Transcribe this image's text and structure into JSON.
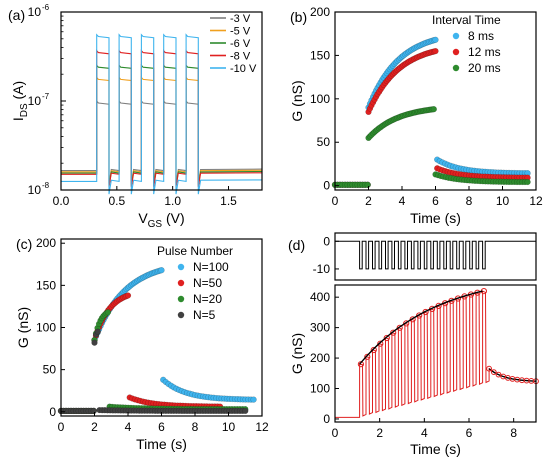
{
  "chart_data": [
    {
      "panel_label": "(a)",
      "type": "line",
      "xlabel_main": "V",
      "xlabel_sub": "GS",
      "xlabel_unit": " (V)",
      "ylabel_main": "I",
      "ylabel_sub": "DS",
      "ylabel_unit": " (A)",
      "xlim": [
        0,
        1.8
      ],
      "ylim": [
        1e-08,
        1e-06
      ],
      "y_scale": "log",
      "x_ticks": [
        0.0,
        0.5,
        1.0,
        1.5
      ],
      "x_tick_labels": [
        "0.0",
        "0.5",
        "1.0",
        "1.5"
      ],
      "y_ticks": [
        1e-08,
        1e-07,
        1e-06
      ],
      "y_tick_base": [
        "10",
        "10",
        "10"
      ],
      "y_tick_exp": [
        "-8",
        "-7",
        "-6"
      ],
      "legend_position": "top-right",
      "pulse_intervals": [
        [
          0.32,
          0.43
        ],
        [
          0.52,
          0.63
        ],
        [
          0.72,
          0.83
        ],
        [
          0.92,
          1.03
        ],
        [
          1.12,
          1.23
        ]
      ],
      "series": [
        {
          "name": "-3 V",
          "color": "#7f7f7f",
          "low": 1.65e-08,
          "high": 9.5e-08
        },
        {
          "name": "-5 V",
          "color": "#f0a01e",
          "low": 1.6e-08,
          "high": 1.75e-07
        },
        {
          "name": "-6 V",
          "color": "#2e8b2e",
          "low": 1.55e-08,
          "high": 2.4e-07
        },
        {
          "name": "-8 V",
          "color": "#e02020",
          "low": 1.5e-08,
          "high": 3.5e-07
        },
        {
          "name": "-10 V",
          "color": "#3fb4ee",
          "low": 1.25e-08,
          "high": 5.3e-07
        }
      ]
    },
    {
      "panel_label": "(b)",
      "type": "scatter",
      "xlabel": "Time (s)",
      "ylabel": "G (nS)",
      "xlim": [
        0,
        12
      ],
      "ylim": [
        -5,
        200
      ],
      "x_ticks": [
        0,
        2,
        4,
        6,
        8,
        10,
        12
      ],
      "x_tick_labels": [
        "0",
        "2",
        "4",
        "6",
        "8",
        "10",
        "12"
      ],
      "y_ticks": [
        0,
        50,
        100,
        150,
        200
      ],
      "y_tick_labels": [
        "0",
        "50",
        "100",
        "150",
        "200"
      ],
      "legend_title": "Interval Time",
      "legend_position": "top-right",
      "series": [
        {
          "name": "8 ms",
          "color": "#3fb4ee",
          "pulse_start": 2.0,
          "pulse_end": 6.0,
          "start_value": 90,
          "end_value": 168,
          "decay_peak": 30,
          "decay_end": 14,
          "decay_end_time": 11.5,
          "baseline": 1
        },
        {
          "name": "12 ms",
          "color": "#e02020",
          "pulse_start": 2.0,
          "pulse_end": 6.0,
          "start_value": 85,
          "end_value": 155,
          "decay_peak": 20,
          "decay_end": 9,
          "decay_end_time": 11.5,
          "baseline": 1
        },
        {
          "name": "20 ms",
          "color": "#2e8b2e",
          "pulse_start": 2.0,
          "pulse_end": 5.9,
          "start_value": 55,
          "end_value": 88,
          "decay_peak": 13,
          "decay_end": 4,
          "decay_end_time": 11.5,
          "baseline": 1
        }
      ]
    },
    {
      "panel_label": "(c)",
      "type": "scatter",
      "xlabel": "Time (s)",
      "ylabel": "G (nS)",
      "xlim": [
        0,
        12
      ],
      "ylim": [
        -5,
        205
      ],
      "x_ticks": [
        0,
        2,
        4,
        6,
        8,
        10,
        12
      ],
      "x_tick_labels": [
        "0",
        "2",
        "4",
        "6",
        "8",
        "10",
        "12"
      ],
      "y_ticks": [
        0,
        50,
        100,
        150,
        200
      ],
      "y_tick_labels": [
        "0",
        "50",
        "100",
        "150",
        "200"
      ],
      "legend_title": "Pulse Number",
      "legend_position": "top-right",
      "series": [
        {
          "name": "N=100",
          "color": "#3fb4ee",
          "pulse_start": 2.0,
          "pulse_end": 6.0,
          "start_value": 85,
          "end_value": 168,
          "decay_peak": 38,
          "decay_end": 14,
          "decay_end_time": 11.5,
          "baseline": 1
        },
        {
          "name": "N=50",
          "color": "#e02020",
          "pulse_start": 2.0,
          "pulse_end": 4.0,
          "start_value": 85,
          "end_value": 138,
          "decay_peak": 17,
          "decay_end": 6,
          "decay_end_time": 9.5,
          "baseline": 1
        },
        {
          "name": "N=20",
          "color": "#2e8b2e",
          "pulse_start": 2.0,
          "pulse_end": 2.8,
          "start_value": 85,
          "end_value": 118,
          "decay_peak": 6,
          "decay_end": 3,
          "decay_end_time": 11.0,
          "baseline": 1
        },
        {
          "name": "N=5",
          "color": "#404040",
          "pulse_start": 2.0,
          "pulse_end": 2.2,
          "start_value": 82,
          "end_value": 95,
          "decay_peak": 2,
          "decay_end": 1,
          "decay_end_time": 11.0,
          "baseline": 1
        }
      ]
    },
    {
      "panel_label": "(d)",
      "type": "line",
      "xlabel": "Time (s)",
      "ylabel": "G (nS)",
      "xlim": [
        0,
        9
      ],
      "x_ticks": [
        0,
        2,
        4,
        6,
        8
      ],
      "x_tick_labels": [
        "0",
        "2",
        "4",
        "6",
        "8"
      ],
      "top": {
        "ylim": [
          -14,
          3
        ],
        "y_ticks": [
          0,
          -10
        ],
        "y_tick_labels": [
          "0",
          "-10"
        ],
        "pulse_count": 20,
        "pulse_start": 1.1,
        "pulse_end": 6.9,
        "pulse_low": -10,
        "pulse_high": 0
      },
      "bottom": {
        "ylim": [
          -10,
          440
        ],
        "y_ticks": [
          0,
          100,
          200,
          300,
          400
        ],
        "y_tick_labels": [
          "0",
          "100",
          "200",
          "300",
          "400"
        ],
        "pulse_start": 1.1,
        "pulse_end": 6.9,
        "pulse_count": 20,
        "envelope_start": 180,
        "envelope_end": 420,
        "trough_start": 10,
        "trough_end": 120,
        "decay_start": 165,
        "decay_end": 122,
        "decay_end_time": 9.0,
        "baseline": 5,
        "trace_color": "#e02020",
        "fit_color": "#000000"
      }
    }
  ]
}
